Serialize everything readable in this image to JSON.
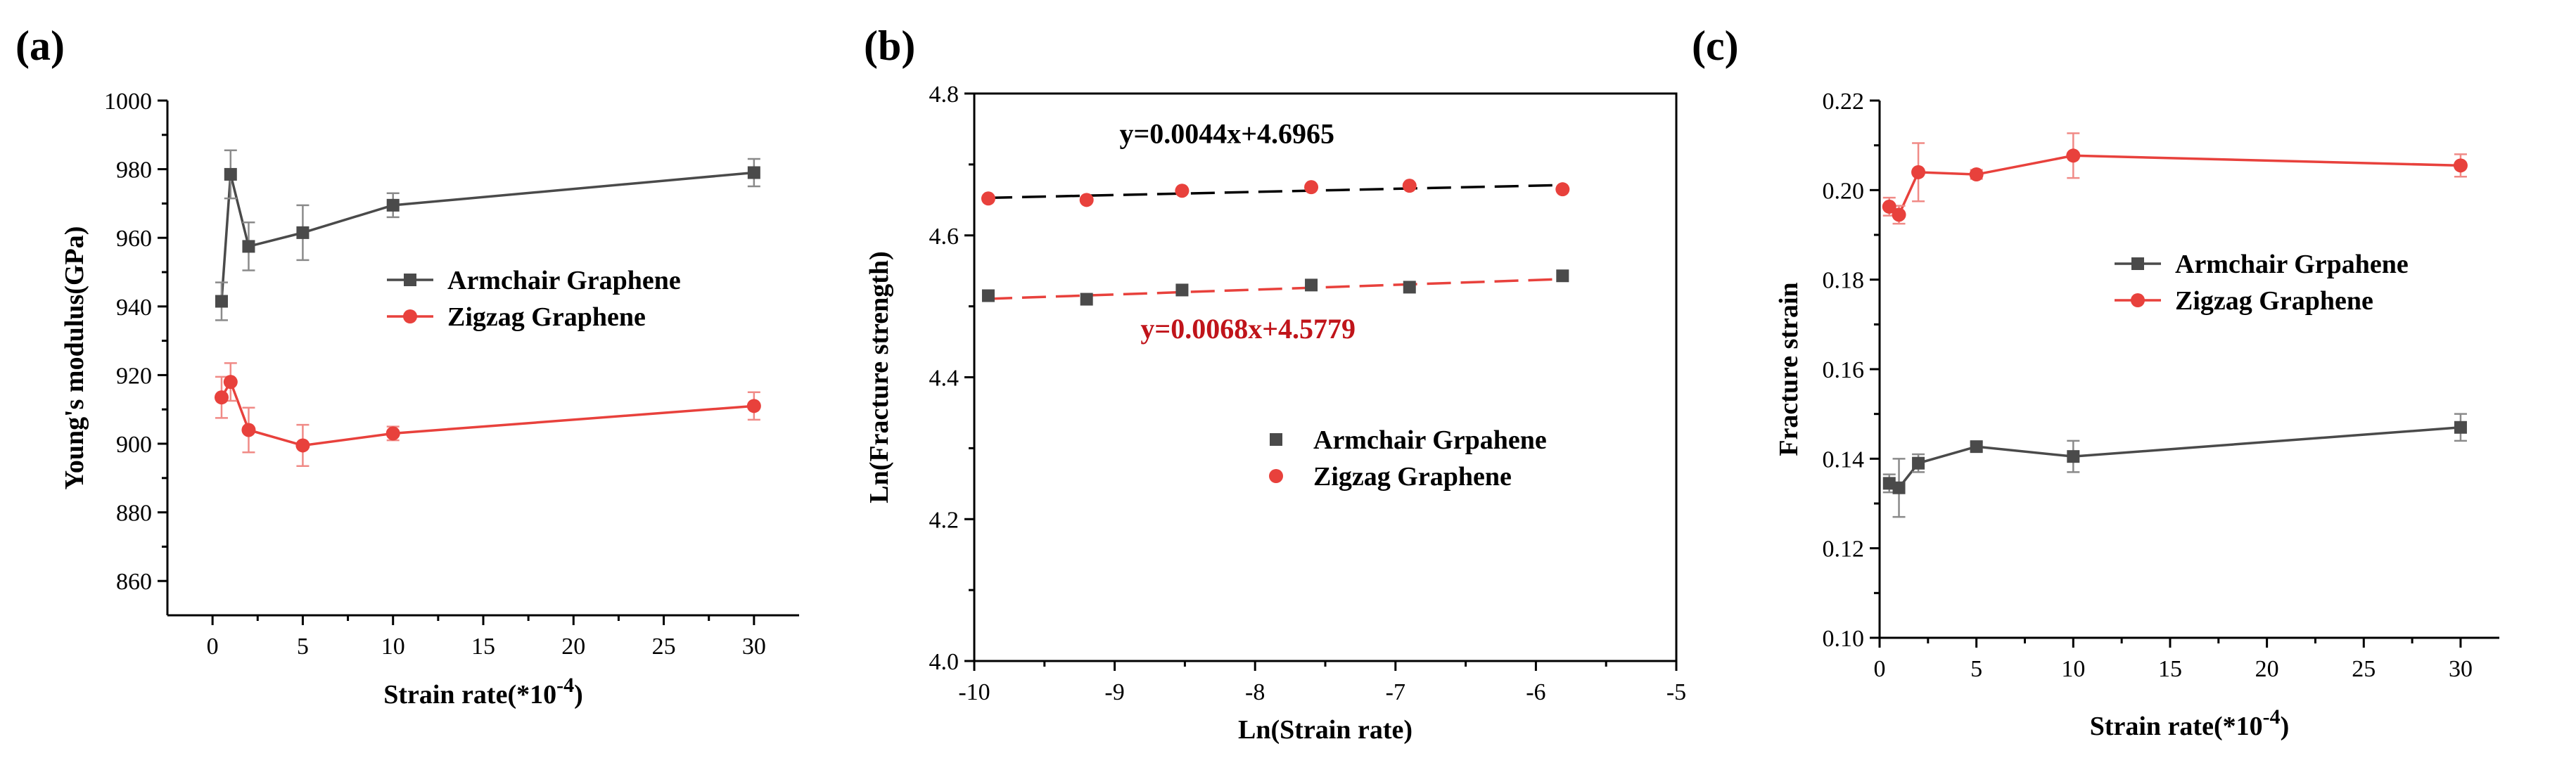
{
  "chart_data": [
    {
      "panel": "(a)",
      "type": "line",
      "xlabel": "Strain rate(*10",
      "xlabel_exp": "-4",
      "xlabel_close": ")",
      "ylabel": "Young's modulus(GPa)",
      "xlim": [
        -2.5,
        32.5
      ],
      "ylim": [
        850,
        1000
      ],
      "xticks": [
        0,
        5,
        10,
        15,
        20,
        25,
        30
      ],
      "yticks": [
        860,
        880,
        900,
        920,
        940,
        960,
        980,
        1000
      ],
      "legend": "center-right",
      "series": [
        {
          "name": "Armchair Graphene",
          "color": "#4a4a4a",
          "marker": "square",
          "x": [
            0.5,
            1,
            2,
            5,
            10,
            30
          ],
          "y": [
            941.5,
            978.5,
            957.5,
            961.5,
            969.5,
            979.0
          ],
          "err": [
            5.5,
            7,
            7,
            8,
            3.5,
            4
          ]
        },
        {
          "name": "Zigzag Graphene",
          "color": "#e8413c",
          "marker": "circle",
          "x": [
            0.5,
            1,
            2,
            5,
            10,
            30
          ],
          "y": [
            913.5,
            918.0,
            904.0,
            899.5,
            903.0,
            911.0
          ],
          "err": [
            6,
            5.5,
            6.5,
            6,
            2,
            4
          ]
        }
      ]
    },
    {
      "panel": "(b)",
      "type": "scatter",
      "xlabel": "Ln(Strain rate)",
      "ylabel": "Ln(Fracture strength)",
      "xlim": [
        -10,
        -5
      ],
      "ylim": [
        4.0,
        4.8
      ],
      "xticks": [
        -10,
        -9,
        -8,
        -7,
        -6,
        -5
      ],
      "yticks": [
        4.0,
        4.2,
        4.4,
        4.6,
        4.8
      ],
      "legend": "lower-right",
      "series": [
        {
          "name": "Armchair Grpahene",
          "color": "#4a4a4a",
          "marker": "square",
          "x": [
            -9.9,
            -9.2,
            -8.52,
            -7.6,
            -6.9,
            -5.81
          ],
          "y": [
            4.515,
            4.51,
            4.523,
            4.53,
            4.527,
            4.543
          ]
        },
        {
          "name": "Zigzag Graphene",
          "color": "#e8413c",
          "marker": "circle",
          "x": [
            -9.9,
            -9.2,
            -8.52,
            -7.6,
            -6.9,
            -5.81
          ],
          "y": [
            4.652,
            4.65,
            4.663,
            4.668,
            4.67,
            4.665
          ]
        }
      ],
      "fits": [
        {
          "label": "y=0.0044x+4.6965",
          "slope": 0.0044,
          "intercept": 4.6965,
          "x_range": [
            -9.9,
            -5.81
          ],
          "line_color": "#000000",
          "text_color": "#000000"
        },
        {
          "label": "y=0.0068x+4.5779",
          "slope": 0.0068,
          "intercept": 4.5779,
          "x_range": [
            -9.9,
            -5.81
          ],
          "line_color": "#e8413c",
          "text_color": "#c0141a"
        }
      ]
    },
    {
      "panel": "(c)",
      "type": "line",
      "xlabel": "Strain rate(*10",
      "xlabel_exp": "-4",
      "xlabel_close": ")",
      "ylabel": "Fracture strain",
      "xlim": [
        0,
        32
      ],
      "ylim": [
        0.1,
        0.22
      ],
      "xticks": [
        0,
        5,
        10,
        15,
        20,
        25,
        30
      ],
      "yticks": [
        0.1,
        0.12,
        0.14,
        0.16,
        0.18,
        0.2,
        0.22
      ],
      "legend": "center-right",
      "series": [
        {
          "name": "Armchair Grpahene",
          "color": "#4a4a4a",
          "marker": "square",
          "x": [
            0.5,
            1,
            2,
            5,
            10,
            30
          ],
          "y": [
            0.1345,
            0.1335,
            0.139,
            0.1427,
            0.1405,
            0.147
          ],
          "err": [
            0.002,
            0.0065,
            0.002,
            0.001,
            0.0035,
            0.003
          ]
        },
        {
          "name": "Zigzag Graphene",
          "color": "#e8413c",
          "marker": "circle",
          "x": [
            0.5,
            1,
            2,
            5,
            10,
            30
          ],
          "y": [
            0.1963,
            0.1945,
            0.204,
            0.2035,
            0.2077,
            0.2055
          ],
          "err": [
            0.002,
            0.002,
            0.0065,
            0.001,
            0.005,
            0.0025
          ]
        }
      ]
    }
  ]
}
